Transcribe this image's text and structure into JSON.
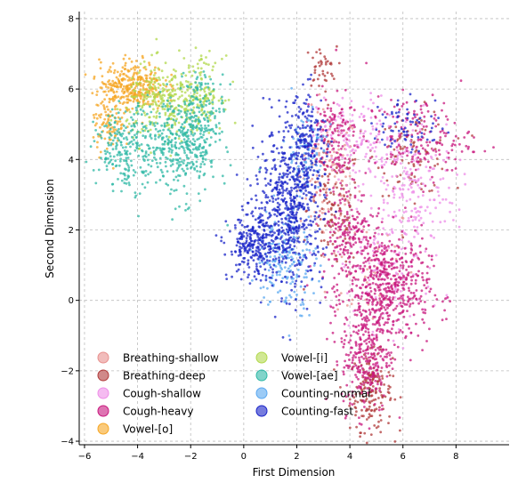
{
  "chart_data": {
    "type": "scatter",
    "title": "",
    "xlabel": "First Dimension",
    "ylabel": "Second Dimension",
    "xlim": [
      -6.2,
      10.0
    ],
    "ylim": [
      -4.1,
      8.2
    ],
    "xticks": [
      -6,
      -4,
      -2,
      0,
      2,
      4,
      6,
      8
    ],
    "yticks": [
      -4,
      -2,
      0,
      2,
      4,
      6,
      8
    ],
    "xtick_labels": [
      "−6",
      "−4",
      "−2",
      "0",
      "2",
      "4",
      "6",
      "8"
    ],
    "ytick_labels": [
      "−4",
      "−2",
      "0",
      "2",
      "4",
      "6",
      "8"
    ],
    "grid": true,
    "legend_position": "lower-left",
    "legend_columns": 2,
    "series": [
      {
        "name": "Breathing-shallow",
        "color": "#e8908e",
        "clusters": [
          {
            "center": [
              3.2,
              3.6
            ],
            "spread": [
              0.55,
              0.9
            ],
            "count": 110
          },
          {
            "center": [
              4.8,
              1.0
            ],
            "spread": [
              0.8,
              0.9
            ],
            "count": 60
          }
        ]
      },
      {
        "name": "Breathing-deep",
        "color": "#b03a3a",
        "clusters": [
          {
            "center": [
              4.8,
              -2.6
            ],
            "spread": [
              0.4,
              0.55
            ],
            "count": 170
          },
          {
            "center": [
              3.4,
              2.6
            ],
            "spread": [
              0.5,
              0.9
            ],
            "count": 110
          },
          {
            "center": [
              6.4,
              4.2
            ],
            "spread": [
              0.7,
              0.6
            ],
            "count": 90
          },
          {
            "center": [
              2.9,
              6.6
            ],
            "spread": [
              0.3,
              0.3
            ],
            "count": 40
          }
        ]
      },
      {
        "name": "Cough-shallow",
        "color": "#ee8ee8",
        "clusters": [
          {
            "center": [
              6.2,
              3.2
            ],
            "spread": [
              0.9,
              1.0
            ],
            "count": 200
          },
          {
            "center": [
              4.2,
              4.6
            ],
            "spread": [
              0.7,
              0.6
            ],
            "count": 120
          },
          {
            "center": [
              5.5,
              1.0
            ],
            "spread": [
              1.0,
              0.9
            ],
            "count": 110
          }
        ]
      },
      {
        "name": "Cough-heavy",
        "color": "#c8187e",
        "clusters": [
          {
            "center": [
              5.4,
              0.3
            ],
            "spread": [
              0.8,
              0.8
            ],
            "count": 540
          },
          {
            "center": [
              4.6,
              -1.6
            ],
            "spread": [
              0.45,
              0.8
            ],
            "count": 260
          },
          {
            "center": [
              3.9,
              1.9
            ],
            "spread": [
              0.5,
              0.7
            ],
            "count": 180
          },
          {
            "center": [
              6.6,
              4.6
            ],
            "spread": [
              1.0,
              0.6
            ],
            "count": 170
          },
          {
            "center": [
              3.3,
              4.6
            ],
            "spread": [
              0.5,
              0.7
            ],
            "count": 150
          }
        ]
      },
      {
        "name": "Vowel-[o]",
        "color": "#f6a623",
        "clusters": [
          {
            "center": [
              -4.2,
              6.1
            ],
            "spread": [
              0.6,
              0.35
            ],
            "count": 320
          },
          {
            "center": [
              -5.1,
              5.0
            ],
            "spread": [
              0.3,
              0.4
            ],
            "count": 90
          }
        ]
      },
      {
        "name": "Vowel-[i]",
        "color": "#b2d84c",
        "clusters": [
          {
            "center": [
              -3.0,
              5.6
            ],
            "spread": [
              0.7,
              0.55
            ],
            "count": 260
          },
          {
            "center": [
              -1.6,
              5.9
            ],
            "spread": [
              0.4,
              0.5
            ],
            "count": 140
          }
        ]
      },
      {
        "name": "Vowel-[ae]",
        "color": "#2fb8a6",
        "clusters": [
          {
            "center": [
              -2.4,
              4.4
            ],
            "spread": [
              0.7,
              0.75
            ],
            "count": 360
          },
          {
            "center": [
              -4.4,
              4.3
            ],
            "spread": [
              0.6,
              0.55
            ],
            "count": 220
          },
          {
            "center": [
              -1.5,
              5.3
            ],
            "spread": [
              0.4,
              0.6
            ],
            "count": 120
          }
        ]
      },
      {
        "name": "Counting-normal",
        "color": "#5aa8f0",
        "clusters": [
          {
            "center": [
              1.6,
              1.2
            ],
            "spread": [
              0.55,
              0.75
            ],
            "count": 180
          },
          {
            "center": [
              2.3,
              4.2
            ],
            "spread": [
              0.4,
              0.6
            ],
            "count": 90
          }
        ]
      },
      {
        "name": "Counting-fast",
        "color": "#1a24c8",
        "clusters": [
          {
            "center": [
              1.7,
              2.6
            ],
            "spread": [
              0.65,
              1.1
            ],
            "count": 620
          },
          {
            "center": [
              0.3,
              1.5
            ],
            "spread": [
              0.45,
              0.45
            ],
            "count": 230
          },
          {
            "center": [
              2.4,
              4.6
            ],
            "spread": [
              0.35,
              0.7
            ],
            "count": 150
          },
          {
            "center": [
              6.2,
              5.0
            ],
            "spread": [
              0.7,
              0.4
            ],
            "count": 70
          }
        ]
      }
    ]
  }
}
